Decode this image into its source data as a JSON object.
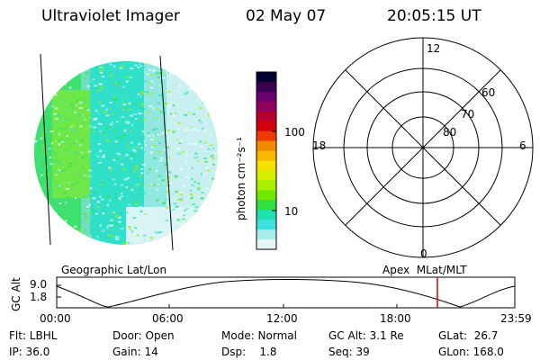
{
  "header": {
    "title": "Ultraviolet Imager",
    "date": "02 May 07",
    "time": "20:05:15 UT"
  },
  "colorbar": {
    "label": "photon cm⁻²s⁻¹",
    "tick_100": "100",
    "tick_10": "10",
    "colors": [
      "#000033",
      "#3a0050",
      "#6a0070",
      "#900060",
      "#b50030",
      "#d40010",
      "#ee3a00",
      "#f58a00",
      "#f7b800",
      "#f5e000",
      "#d8f000",
      "#a8ee00",
      "#70e800",
      "#30e040",
      "#20e0b0",
      "#40e0e0",
      "#a8ecec",
      "#e4f6f6"
    ]
  },
  "polar_plot": {
    "labels": {
      "top": "12",
      "bottom": "0",
      "left": "18",
      "right": "6"
    },
    "rings": [
      "60",
      "70",
      "80"
    ]
  },
  "timeline": {
    "left_title": "Geographic Lat/Lon",
    "right_title": "Apex  MLat/MLT",
    "y_label": "GC Alt",
    "y_ticks": [
      "9.0",
      "1.8"
    ],
    "x_ticks": [
      "00:00",
      "06:00",
      "12:00",
      "18:00",
      "23:59"
    ],
    "marker_color": "#e00000"
  },
  "status": {
    "flt": "Flt: LBHL",
    "door": "Door: Open",
    "mode": "Mode: Normal",
    "gcalt": "GC Alt: 3.1 Re",
    "glat": "GLat:  26.7",
    "ip": "IP: 36.0",
    "gain": "Gain: 14",
    "dsp": "Dsp:    1.8",
    "seq": "Seq: 39",
    "glon": "GLon: 168.0"
  }
}
